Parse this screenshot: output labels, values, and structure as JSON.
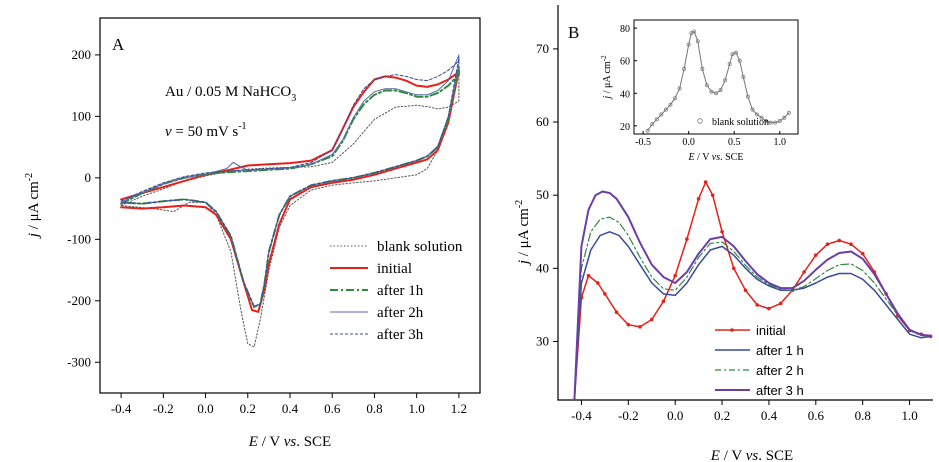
{
  "chart_data": [
    {
      "type": "line",
      "panel": "A",
      "xlabel": "E / V vs. SCE",
      "ylabel": "j / μA cm⁻²",
      "xlim": [
        -0.5,
        1.3
      ],
      "ylim": [
        -350,
        260
      ],
      "xticks": [
        "-0.4",
        "-0.2",
        "0.0",
        "0.2",
        "0.4",
        "0.6",
        "0.8",
        "1.0",
        "1.2"
      ],
      "yticks": [
        "-300",
        "-200",
        "-100",
        "0",
        "100",
        "200"
      ],
      "xtick_values": [
        -0.4,
        -0.2,
        0.0,
        0.2,
        0.4,
        0.6,
        0.8,
        1.0,
        1.2
      ],
      "ytick_values": [
        -300,
        -200,
        -100,
        0,
        100,
        200
      ],
      "annotations": [
        "Au / 0.05 M NaHCO₃",
        "v = 50 mV s⁻¹"
      ],
      "legend_position": "bottom-right",
      "series": [
        {
          "name": "blank solution",
          "color": "#555555",
          "style": "dotted",
          "x": [
            -0.4,
            -0.3,
            -0.2,
            -0.1,
            0.0,
            0.1,
            0.2,
            0.3,
            0.4,
            0.5,
            0.6,
            0.7,
            0.8,
            0.9,
            1.0,
            1.05,
            1.1,
            1.15,
            1.2,
            1.2,
            1.15,
            1.1,
            1.05,
            1.0,
            0.9,
            0.8,
            0.7,
            0.6,
            0.5,
            0.4,
            0.35,
            0.3,
            0.26,
            0.23,
            0.2,
            0.17,
            0.12,
            0.05,
            0.0,
            -0.08,
            -0.15,
            -0.25,
            -0.4
          ],
          "y": [
            -45,
            -30,
            -18,
            -5,
            3,
            10,
            14,
            16,
            17,
            18,
            25,
            55,
            95,
            115,
            118,
            116,
            112,
            115,
            125,
            175,
            100,
            45,
            15,
            5,
            0,
            -5,
            -8,
            -12,
            -20,
            -45,
            -80,
            -150,
            -230,
            -275,
            -270,
            -220,
            -120,
            -60,
            -40,
            -40,
            -55,
            -50,
            -45
          ]
        },
        {
          "name": "initial",
          "color": "#e8201a",
          "style": "solid",
          "x": [
            -0.4,
            -0.3,
            -0.2,
            -0.1,
            0.0,
            0.1,
            0.2,
            0.3,
            0.4,
            0.5,
            0.6,
            0.65,
            0.7,
            0.75,
            0.8,
            0.85,
            0.9,
            0.95,
            1.0,
            1.05,
            1.1,
            1.15,
            1.2,
            1.2,
            1.15,
            1.1,
            1.05,
            1.0,
            0.9,
            0.8,
            0.7,
            0.6,
            0.5,
            0.4,
            0.35,
            0.3,
            0.28,
            0.25,
            0.22,
            0.18,
            0.12,
            0.05,
            0.0,
            -0.1,
            -0.2,
            -0.3,
            -0.4
          ],
          "y": [
            -35,
            -25,
            -15,
            -5,
            5,
            12,
            20,
            22,
            24,
            28,
            45,
            80,
            115,
            140,
            160,
            165,
            163,
            158,
            150,
            148,
            152,
            160,
            172,
            175,
            90,
            45,
            30,
            25,
            15,
            5,
            -3,
            -8,
            -15,
            -35,
            -75,
            -140,
            -180,
            -218,
            -215,
            -170,
            -100,
            -60,
            -48,
            -45,
            -48,
            -50,
            -48
          ]
        },
        {
          "name": "after 1h",
          "color": "#2e8b3e",
          "style": "dashdot",
          "x": [
            -0.4,
            -0.3,
            -0.2,
            -0.1,
            0.0,
            0.1,
            0.2,
            0.3,
            0.4,
            0.5,
            0.6,
            0.65,
            0.7,
            0.75,
            0.8,
            0.85,
            0.9,
            0.95,
            1.0,
            1.05,
            1.1,
            1.15,
            1.2,
            1.2,
            1.15,
            1.1,
            1.05,
            1.0,
            0.9,
            0.8,
            0.7,
            0.6,
            0.5,
            0.4,
            0.35,
            0.3,
            0.28,
            0.26,
            0.23,
            0.18,
            0.12,
            0.05,
            0.0,
            -0.1,
            -0.2,
            -0.3,
            -0.4
          ],
          "y": [
            -42,
            -25,
            -10,
            0,
            6,
            9,
            11,
            13,
            15,
            22,
            35,
            60,
            95,
            120,
            135,
            142,
            142,
            138,
            132,
            132,
            138,
            150,
            168,
            180,
            95,
            50,
            35,
            28,
            18,
            8,
            0,
            -5,
            -12,
            -30,
            -60,
            -120,
            -170,
            -205,
            -210,
            -170,
            -95,
            -55,
            -40,
            -35,
            -38,
            -42,
            -40
          ]
        },
        {
          "name": "after 2h",
          "color": "#5a68a8",
          "style": "solid",
          "x": [
            -0.4,
            -0.3,
            -0.2,
            -0.1,
            0.0,
            0.1,
            0.13,
            0.2,
            0.3,
            0.4,
            0.5,
            0.6,
            0.65,
            0.7,
            0.75,
            0.8,
            0.85,
            0.9,
            0.95,
            1.0,
            1.05,
            1.1,
            1.15,
            1.2,
            1.2,
            1.15,
            1.1,
            1.05,
            1.0,
            0.9,
            0.8,
            0.7,
            0.6,
            0.5,
            0.4,
            0.35,
            0.3,
            0.28,
            0.26,
            0.23,
            0.18,
            0.12,
            0.05,
            0.0,
            -0.1,
            -0.2,
            -0.3,
            -0.4
          ],
          "y": [
            -40,
            -24,
            -10,
            0,
            6,
            15,
            25,
            12,
            14,
            16,
            22,
            38,
            62,
            98,
            125,
            140,
            145,
            145,
            140,
            135,
            135,
            142,
            158,
            200,
            185,
            100,
            52,
            35,
            28,
            18,
            8,
            0,
            -5,
            -12,
            -30,
            -60,
            -120,
            -170,
            -205,
            -210,
            -170,
            -95,
            -55,
            -40,
            -35,
            -38,
            -42,
            -40
          ]
        },
        {
          "name": "after 3h",
          "color": "#3a4a9c",
          "style": "dashed",
          "x": [
            -0.4,
            -0.3,
            -0.2,
            -0.1,
            0.0,
            0.1,
            0.2,
            0.3,
            0.4,
            0.5,
            0.6,
            0.65,
            0.7,
            0.75,
            0.8,
            0.85,
            0.9,
            0.95,
            1.0,
            1.05,
            1.1,
            1.15,
            1.2,
            1.2,
            1.15,
            1.1,
            1.05,
            1.0,
            0.9,
            0.8,
            0.7,
            0.6,
            0.5,
            0.4,
            0.35,
            0.3,
            0.28,
            0.26,
            0.23,
            0.18,
            0.12,
            0.05,
            0.0,
            -0.1,
            -0.2,
            -0.3,
            -0.4
          ],
          "y": [
            -38,
            -22,
            -8,
            2,
            8,
            11,
            13,
            15,
            17,
            25,
            45,
            80,
            118,
            145,
            160,
            165,
            168,
            165,
            160,
            158,
            165,
            175,
            190,
            195,
            100,
            50,
            35,
            28,
            18,
            8,
            0,
            -5,
            -12,
            -30,
            -60,
            -120,
            -170,
            -205,
            -210,
            -170,
            -95,
            -55,
            -40,
            -35,
            -38,
            -42,
            -40
          ]
        }
      ]
    },
    {
      "type": "line",
      "panel": "B",
      "xlabel": "E / V vs. SCE",
      "ylabel": "j / μA cm⁻²",
      "xlim": [
        -0.5,
        1.1
      ],
      "ylim": [
        22,
        76
      ],
      "xticks": [
        "-0.4",
        "-0.2",
        "0.0",
        "0.2",
        "0.4",
        "0.6",
        "0.8",
        "1.0"
      ],
      "yticks": [
        "30",
        "40",
        "50",
        "60",
        "70"
      ],
      "xtick_values": [
        -0.4,
        -0.2,
        0.0,
        0.2,
        0.4,
        0.6,
        0.8,
        1.0
      ],
      "ytick_values": [
        30,
        40,
        50,
        60,
        70
      ],
      "legend_position": "bottom-center",
      "series": [
        {
          "name": "initial",
          "color": "#e8201a",
          "style": "solid-markers",
          "x": [
            -0.43,
            -0.4,
            -0.37,
            -0.33,
            -0.3,
            -0.25,
            -0.2,
            -0.15,
            -0.1,
            -0.05,
            0.0,
            0.05,
            0.1,
            0.13,
            0.16,
            0.2,
            0.25,
            0.3,
            0.35,
            0.4,
            0.45,
            0.5,
            0.55,
            0.6,
            0.65,
            0.7,
            0.75,
            0.8,
            0.85,
            0.9,
            0.95,
            1.0,
            1.05,
            1.09
          ],
          "y": [
            22,
            36,
            39,
            38,
            36.5,
            34,
            32.3,
            32,
            33,
            35.5,
            39,
            44,
            49.5,
            51.8,
            50,
            45,
            40,
            37,
            35,
            34.5,
            35.2,
            37,
            39.5,
            41.8,
            43.3,
            43.8,
            43.3,
            42,
            39.5,
            36.5,
            33.5,
            31.5,
            31,
            30.7
          ]
        },
        {
          "name": "after 1 h",
          "color": "#3a4a9c",
          "style": "solid",
          "x": [
            -0.43,
            -0.4,
            -0.36,
            -0.32,
            -0.28,
            -0.24,
            -0.2,
            -0.15,
            -0.1,
            -0.05,
            0.0,
            0.05,
            0.1,
            0.15,
            0.2,
            0.25,
            0.3,
            0.35,
            0.4,
            0.45,
            0.5,
            0.55,
            0.6,
            0.65,
            0.7,
            0.75,
            0.8,
            0.85,
            0.9,
            0.95,
            1.0,
            1.05,
            1.09
          ],
          "y": [
            22,
            38,
            42.5,
            44.5,
            45,
            44.5,
            43,
            40.5,
            38,
            36.5,
            36.3,
            38,
            40.5,
            42.5,
            43,
            41.8,
            40,
            38.5,
            37.6,
            37,
            37,
            37.3,
            38,
            38.8,
            39.3,
            39.3,
            38.5,
            37,
            35,
            33,
            31,
            30.5,
            30.7
          ]
        },
        {
          "name": "after 2 h",
          "color": "#2e8b3e",
          "style": "dashdot",
          "x": [
            -0.43,
            -0.4,
            -0.36,
            -0.32,
            -0.28,
            -0.24,
            -0.2,
            -0.15,
            -0.1,
            -0.05,
            0.0,
            0.05,
            0.1,
            0.15,
            0.2,
            0.25,
            0.3,
            0.35,
            0.4,
            0.45,
            0.5,
            0.55,
            0.6,
            0.65,
            0.7,
            0.75,
            0.8,
            0.85,
            0.9,
            0.95,
            1.0,
            1.05,
            1.09
          ],
          "y": [
            22,
            40,
            45,
            46.7,
            47,
            46.3,
            44.5,
            41.5,
            38.8,
            37.2,
            37,
            38.8,
            41.5,
            43.4,
            43.6,
            42.3,
            40.4,
            38.8,
            37.8,
            37.1,
            37,
            37.5,
            38.6,
            39.7,
            40.5,
            40.6,
            39.7,
            38,
            35.8,
            33.6,
            31.5,
            30.8,
            30.8
          ]
        },
        {
          "name": "after 3 h",
          "color": "#6a3fa8",
          "style": "solid",
          "x": [
            -0.43,
            -0.4,
            -0.37,
            -0.34,
            -0.31,
            -0.28,
            -0.25,
            -0.2,
            -0.15,
            -0.1,
            -0.05,
            0.0,
            0.05,
            0.1,
            0.15,
            0.2,
            0.25,
            0.3,
            0.35,
            0.4,
            0.45,
            0.5,
            0.55,
            0.6,
            0.65,
            0.7,
            0.75,
            0.8,
            0.85,
            0.9,
            0.95,
            1.0,
            1.05,
            1.09
          ],
          "y": [
            22,
            43,
            48,
            50,
            50.5,
            50.3,
            49.5,
            47,
            43.5,
            40.5,
            38.8,
            38,
            39.5,
            42,
            44,
            44.3,
            43,
            41,
            39.2,
            38,
            37.3,
            37.3,
            38.3,
            39.8,
            41.2,
            42.1,
            42.3,
            41.3,
            39.2,
            36.5,
            33.8,
            31.6,
            30.9,
            30.8
          ]
        }
      ]
    },
    {
      "type": "line",
      "panel": "B-inset",
      "xlabel": "E / V vs. SCE",
      "ylabel": "j / μA cm⁻²",
      "xlim": [
        -0.6,
        1.2
      ],
      "ylim": [
        15,
        85
      ],
      "xticks": [
        "-0.5",
        "0.0",
        "0.5",
        "1.0"
      ],
      "yticks": [
        "20",
        "40",
        "60",
        "80"
      ],
      "xtick_values": [
        -0.5,
        0.0,
        0.5,
        1.0
      ],
      "ytick_values": [
        20,
        40,
        60,
        80
      ],
      "legend_position": "bottom-right",
      "series": [
        {
          "name": "blank solution",
          "color": "#777777",
          "style": "circle-markers",
          "x": [
            -0.45,
            -0.4,
            -0.35,
            -0.3,
            -0.25,
            -0.2,
            -0.15,
            -0.1,
            -0.05,
            0.0,
            0.03,
            0.06,
            0.1,
            0.15,
            0.2,
            0.25,
            0.3,
            0.35,
            0.4,
            0.45,
            0.48,
            0.52,
            0.56,
            0.6,
            0.65,
            0.7,
            0.75,
            0.8,
            0.85,
            0.9,
            0.95,
            1.0,
            1.05,
            1.1
          ],
          "y": [
            17,
            21,
            24,
            27,
            30,
            33,
            37,
            43,
            55,
            70,
            77,
            78,
            72,
            55,
            45,
            41,
            40,
            42,
            48,
            58,
            64,
            65,
            60,
            50,
            38,
            30,
            27,
            25,
            23,
            22,
            22,
            23,
            25,
            28
          ]
        }
      ]
    }
  ]
}
